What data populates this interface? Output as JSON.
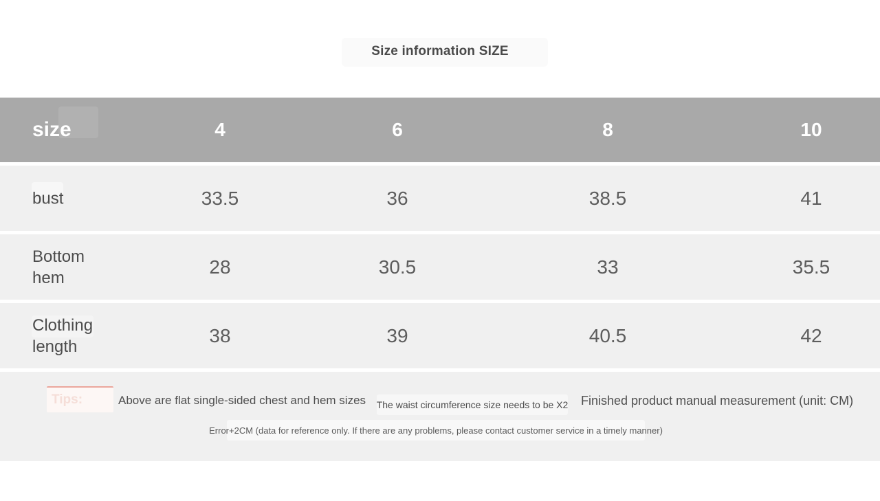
{
  "title": "Size information SIZE",
  "table": {
    "header": {
      "label": "size",
      "columns": [
        "4",
        "6",
        "8",
        "10"
      ]
    },
    "rows": [
      {
        "label": "bust",
        "values": [
          "33.5",
          "36",
          "38.5",
          "41"
        ]
      },
      {
        "label": "Bottom hem",
        "values": [
          "28",
          "30.5",
          "33",
          "35.5"
        ]
      },
      {
        "label": "Clothing length",
        "values": [
          "38",
          "39",
          "40.5",
          "42"
        ]
      }
    ]
  },
  "footer": {
    "tips_label": "Tips:",
    "note_left": "Above are flat single-sided chest and hem sizes",
    "note_middle": "The waist circumference size needs to be X2",
    "note_right": "Finished product manual measurement (unit: CM)",
    "error_note": "Error+2CM (data for reference only. If there are any problems, please contact customer service in a timely manner)"
  },
  "colors": {
    "header_bg": "#a9a9a9",
    "header_text": "#ffffff",
    "row_bg": "#f0f0f0",
    "value_text": "#5d5d5d",
    "tips_border": "#eaa69c",
    "tips_text": "#f5ded8"
  }
}
